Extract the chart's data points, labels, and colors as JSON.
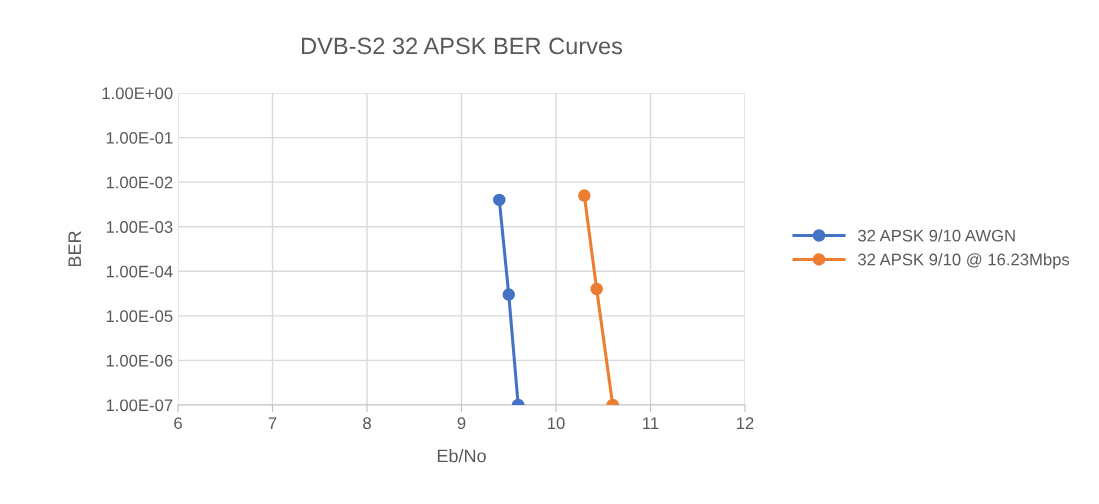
{
  "chart_data": {
    "type": "line",
    "title": "DVB-S2 32 APSK BER Curves",
    "xlabel": "Eb/No",
    "ylabel": "BER",
    "log": "y",
    "grid": true,
    "legend": "right",
    "marker": "circle",
    "line_style": "solid",
    "xlim": [
      6,
      12
    ],
    "xticks": [
      6,
      7,
      8,
      9,
      10,
      11,
      12
    ],
    "ylim": [
      1e-07,
      1
    ],
    "yticks": [
      {
        "value": 1,
        "label": "1.00E+00"
      },
      {
        "value": 0.1,
        "label": "1.00E-01"
      },
      {
        "value": 0.01,
        "label": "1.00E-02"
      },
      {
        "value": 0.001,
        "label": "1.00E-03"
      },
      {
        "value": 0.0001,
        "label": "1.00E-04"
      },
      {
        "value": 1e-05,
        "label": "1.00E-05"
      },
      {
        "value": 1e-06,
        "label": "1.00E-06"
      },
      {
        "value": 1e-07,
        "label": "1.00E-07"
      }
    ],
    "series": [
      {
        "name": "32 APSK 9/10 AWGN",
        "color": "#4472c4",
        "x": [
          9.4,
          9.5,
          9.6
        ],
        "values": [
          0.004,
          3e-05,
          1e-07
        ]
      },
      {
        "name": "32 APSK 9/10 @ 16.23Mbps",
        "color": "#ed7d31",
        "x": [
          10.3,
          10.43,
          10.6
        ],
        "values": [
          0.005,
          4e-05,
          1e-07
        ]
      }
    ]
  }
}
